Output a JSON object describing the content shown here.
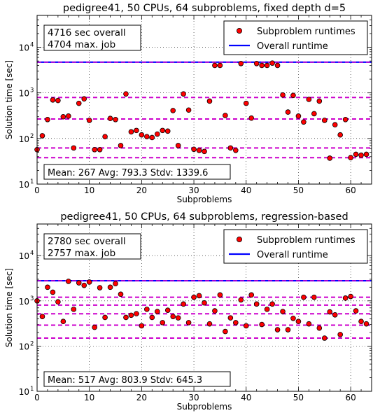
{
  "chart_data": [
    {
      "type": "scatter",
      "title": "pedigree41, 50 CPUs, 64 subproblems, fixed depth d=5",
      "xlabel": "Subproblems",
      "ylabel": "Solution time [sec]",
      "xlim": [
        0,
        64
      ],
      "ylim": [
        10,
        50000
      ],
      "yscale": "log",
      "grid": true,
      "x_ticks": [
        "0",
        "10",
        "20",
        "30",
        "40",
        "50",
        "60"
      ],
      "y_ticks": [
        "10",
        "10",
        "10",
        "10"
      ],
      "y_tick_exps": [
        "1",
        "2",
        "3",
        "4"
      ],
      "legend": {
        "position": "top-right",
        "entries": [
          "Subproblem runtimes",
          "Overall runtime"
        ]
      },
      "info_box": [
        "4716 sec overall",
        "4704 max. job"
      ],
      "stats_box": "Mean: 267  Avg: 793.3  Stdv: 1339.6",
      "overall_runtime": 4716,
      "mean_line": 267,
      "avg_line": 793.3,
      "stdv_lines": [
        62,
        38
      ],
      "series": [
        {
          "name": "Subproblem runtimes",
          "x": [
            0,
            1,
            2,
            3,
            4,
            5,
            6,
            7,
            8,
            9,
            10,
            11,
            12,
            13,
            14,
            15,
            16,
            17,
            18,
            19,
            20,
            21,
            22,
            23,
            24,
            25,
            26,
            27,
            28,
            29,
            30,
            31,
            32,
            33,
            34,
            35,
            36,
            37,
            38,
            39,
            40,
            41,
            42,
            43,
            44,
            45,
            46,
            47,
            48,
            49,
            50,
            51,
            52,
            53,
            54,
            55,
            56,
            57,
            58,
            59,
            60,
            61,
            62,
            63
          ],
          "values": [
            57,
            115,
            260,
            700,
            680,
            300,
            310,
            62,
            590,
            740,
            250,
            57,
            57,
            110,
            275,
            260,
            70,
            950,
            140,
            150,
            120,
            110,
            105,
            125,
            150,
            145,
            410,
            70,
            950,
            420,
            58,
            55,
            52,
            660,
            4000,
            4000,
            320,
            62,
            55,
            4400,
            590,
            280,
            4400,
            4000,
            4000,
            4500,
            4000,
            900,
            380,
            880,
            310,
            230,
            720,
            350,
            660,
            250,
            37,
            200,
            120,
            260,
            38,
            45,
            43,
            45
          ]
        }
      ],
      "colors": {
        "marker": "#ff0000",
        "overall": "#0000ff",
        "dashed": "#cc00cc"
      }
    },
    {
      "type": "scatter",
      "title": "pedigree41, 50 CPUs, 64 subproblems, regression-based",
      "xlabel": "Subproblems",
      "ylabel": "Solution time [sec]",
      "xlim": [
        0,
        64
      ],
      "ylim": [
        10,
        50000
      ],
      "yscale": "log",
      "grid": true,
      "x_ticks": [
        "0",
        "10",
        "20",
        "30",
        "40",
        "50",
        "60"
      ],
      "y_ticks": [
        "10",
        "10",
        "10",
        "10"
      ],
      "y_tick_exps": [
        "1",
        "2",
        "3",
        "4"
      ],
      "legend": {
        "position": "top-right",
        "entries": [
          "Subproblem runtimes",
          "Overall runtime"
        ]
      },
      "info_box": [
        "2780 sec overall",
        "2757 max. job"
      ],
      "stats_box": "Mean: 517  Avg: 803.9  Stdv: 645.3",
      "overall_runtime": 2780,
      "mean_line": 517,
      "avg_line": 803.9,
      "stdv_lines": [
        1200,
        290,
        150
      ],
      "series": [
        {
          "name": "Subproblem runtimes",
          "x": [
            0,
            1,
            2,
            3,
            4,
            5,
            6,
            7,
            8,
            9,
            10,
            11,
            12,
            13,
            14,
            15,
            16,
            17,
            18,
            19,
            20,
            21,
            22,
            23,
            24,
            25,
            26,
            27,
            28,
            29,
            30,
            31,
            32,
            33,
            34,
            35,
            36,
            37,
            38,
            39,
            40,
            41,
            42,
            43,
            44,
            45,
            46,
            47,
            48,
            49,
            50,
            51,
            52,
            53,
            54,
            55,
            56,
            57,
            58,
            59,
            60,
            61,
            62,
            63
          ],
          "values": [
            1000,
            450,
            2000,
            1550,
            950,
            350,
            2700,
            650,
            2500,
            2200,
            2600,
            260,
            1950,
            430,
            2000,
            2400,
            1400,
            430,
            480,
            520,
            280,
            650,
            430,
            580,
            330,
            620,
            450,
            420,
            850,
            330,
            1200,
            1300,
            900,
            310,
            600,
            1350,
            210,
            420,
            330,
            1050,
            280,
            1350,
            850,
            300,
            650,
            850,
            230,
            580,
            230,
            410,
            350,
            1200,
            310,
            1200,
            250,
            150,
            570,
            490,
            180,
            1150,
            1250,
            600,
            350,
            310
          ]
        }
      ],
      "colors": {
        "marker": "#ff0000",
        "overall": "#0000ff",
        "dashed": "#cc00cc"
      }
    }
  ]
}
